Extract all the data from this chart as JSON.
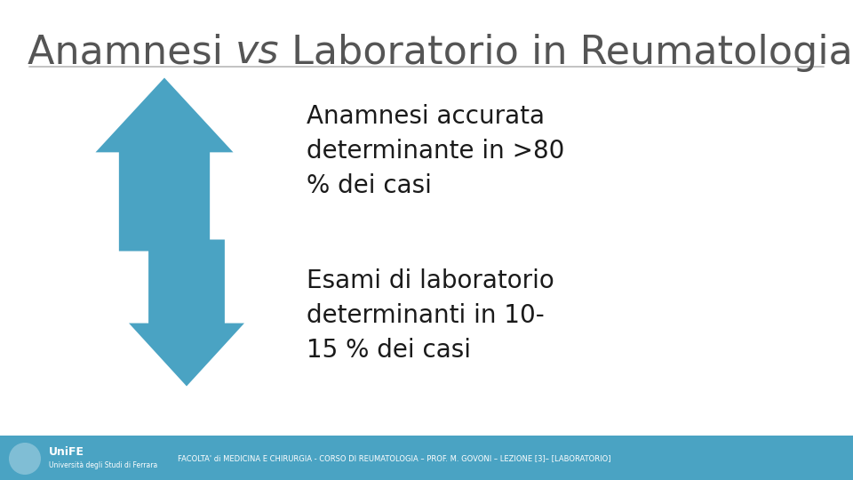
{
  "title_part1": "Anamnesi ",
  "title_vs": "vs",
  "title_part2": " Laboratorio in Reumatologia",
  "text_up": "Anamnesi accurata\ndeterminante in >80\n% dei casi",
  "text_down": "Esami di laboratorio\ndeterminanti in 10-\n15 % dei casi",
  "footer_text": "FACOLTA' di MEDICINA E CHIRURGIA - CORSO DI REUMATOLOGIA – PROF. M. GOVONI – LEZIONE [3]– [LABORATORIO]",
  "footer_logo": "UniFE",
  "footer_sub": "Università degli Studi di Ferrara",
  "arrow_color": "#4aa3c3",
  "background_color": "#ffffff",
  "title_color": "#555555",
  "text_color": "#1a1a1a",
  "footer_bar_color": "#4aa3c3",
  "line_color": "#aaaaaa",
  "text_fontsize": 20,
  "title_fontsize": 32
}
